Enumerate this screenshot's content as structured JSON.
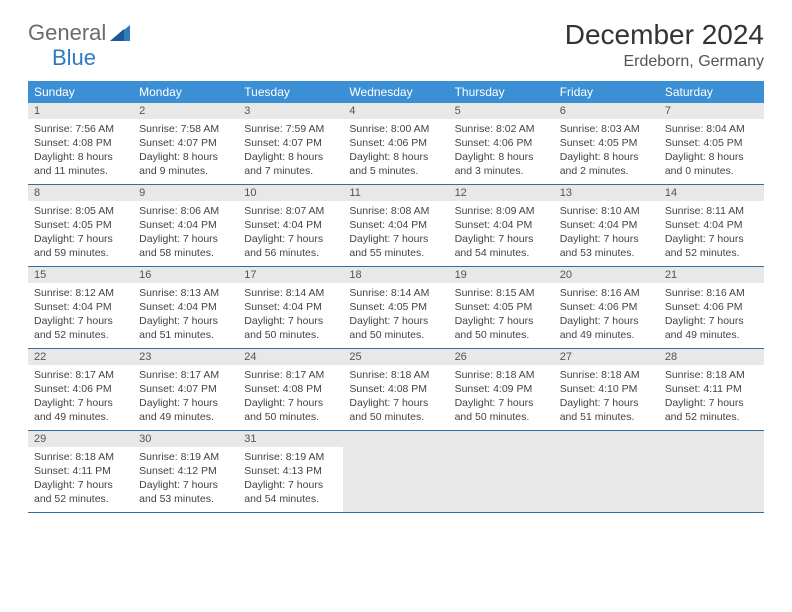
{
  "logo": {
    "text1": "General",
    "text2": "Blue"
  },
  "title": "December 2024",
  "location": "Erdeborn, Germany",
  "colors": {
    "header_bg": "#3b8fd4",
    "header_text": "#ffffff",
    "daynum_bg": "#e8e8e8",
    "row_divider": "#2f6fa8",
    "body_text": "#444444",
    "title_text": "#333333",
    "logo_gray": "#6b6b6b",
    "logo_blue": "#2f7bbf"
  },
  "weekdays": [
    "Sunday",
    "Monday",
    "Tuesday",
    "Wednesday",
    "Thursday",
    "Friday",
    "Saturday"
  ],
  "days": [
    {
      "n": "1",
      "sunrise": "7:56 AM",
      "sunset": "4:08 PM",
      "dh": "8",
      "dm": "11"
    },
    {
      "n": "2",
      "sunrise": "7:58 AM",
      "sunset": "4:07 PM",
      "dh": "8",
      "dm": "9"
    },
    {
      "n": "3",
      "sunrise": "7:59 AM",
      "sunset": "4:07 PM",
      "dh": "8",
      "dm": "7"
    },
    {
      "n": "4",
      "sunrise": "8:00 AM",
      "sunset": "4:06 PM",
      "dh": "8",
      "dm": "5"
    },
    {
      "n": "5",
      "sunrise": "8:02 AM",
      "sunset": "4:06 PM",
      "dh": "8",
      "dm": "3"
    },
    {
      "n": "6",
      "sunrise": "8:03 AM",
      "sunset": "4:05 PM",
      "dh": "8",
      "dm": "2"
    },
    {
      "n": "7",
      "sunrise": "8:04 AM",
      "sunset": "4:05 PM",
      "dh": "8",
      "dm": "0"
    },
    {
      "n": "8",
      "sunrise": "8:05 AM",
      "sunset": "4:05 PM",
      "dh": "7",
      "dm": "59"
    },
    {
      "n": "9",
      "sunrise": "8:06 AM",
      "sunset": "4:04 PM",
      "dh": "7",
      "dm": "58"
    },
    {
      "n": "10",
      "sunrise": "8:07 AM",
      "sunset": "4:04 PM",
      "dh": "7",
      "dm": "56"
    },
    {
      "n": "11",
      "sunrise": "8:08 AM",
      "sunset": "4:04 PM",
      "dh": "7",
      "dm": "55"
    },
    {
      "n": "12",
      "sunrise": "8:09 AM",
      "sunset": "4:04 PM",
      "dh": "7",
      "dm": "54"
    },
    {
      "n": "13",
      "sunrise": "8:10 AM",
      "sunset": "4:04 PM",
      "dh": "7",
      "dm": "53"
    },
    {
      "n": "14",
      "sunrise": "8:11 AM",
      "sunset": "4:04 PM",
      "dh": "7",
      "dm": "52"
    },
    {
      "n": "15",
      "sunrise": "8:12 AM",
      "sunset": "4:04 PM",
      "dh": "7",
      "dm": "52"
    },
    {
      "n": "16",
      "sunrise": "8:13 AM",
      "sunset": "4:04 PM",
      "dh": "7",
      "dm": "51"
    },
    {
      "n": "17",
      "sunrise": "8:14 AM",
      "sunset": "4:04 PM",
      "dh": "7",
      "dm": "50"
    },
    {
      "n": "18",
      "sunrise": "8:14 AM",
      "sunset": "4:05 PM",
      "dh": "7",
      "dm": "50"
    },
    {
      "n": "19",
      "sunrise": "8:15 AM",
      "sunset": "4:05 PM",
      "dh": "7",
      "dm": "50"
    },
    {
      "n": "20",
      "sunrise": "8:16 AM",
      "sunset": "4:06 PM",
      "dh": "7",
      "dm": "49"
    },
    {
      "n": "21",
      "sunrise": "8:16 AM",
      "sunset": "4:06 PM",
      "dh": "7",
      "dm": "49"
    },
    {
      "n": "22",
      "sunrise": "8:17 AM",
      "sunset": "4:06 PM",
      "dh": "7",
      "dm": "49"
    },
    {
      "n": "23",
      "sunrise": "8:17 AM",
      "sunset": "4:07 PM",
      "dh": "7",
      "dm": "49"
    },
    {
      "n": "24",
      "sunrise": "8:17 AM",
      "sunset": "4:08 PM",
      "dh": "7",
      "dm": "50"
    },
    {
      "n": "25",
      "sunrise": "8:18 AM",
      "sunset": "4:08 PM",
      "dh": "7",
      "dm": "50"
    },
    {
      "n": "26",
      "sunrise": "8:18 AM",
      "sunset": "4:09 PM",
      "dh": "7",
      "dm": "50"
    },
    {
      "n": "27",
      "sunrise": "8:18 AM",
      "sunset": "4:10 PM",
      "dh": "7",
      "dm": "51"
    },
    {
      "n": "28",
      "sunrise": "8:18 AM",
      "sunset": "4:11 PM",
      "dh": "7",
      "dm": "52"
    },
    {
      "n": "29",
      "sunrise": "8:18 AM",
      "sunset": "4:11 PM",
      "dh": "7",
      "dm": "52"
    },
    {
      "n": "30",
      "sunrise": "8:19 AM",
      "sunset": "4:12 PM",
      "dh": "7",
      "dm": "53"
    },
    {
      "n": "31",
      "sunrise": "8:19 AM",
      "sunset": "4:13 PM",
      "dh": "7",
      "dm": "54"
    }
  ],
  "trailing_empty": 4,
  "labels": {
    "sunrise_prefix": "Sunrise: ",
    "sunset_prefix": "Sunset: ",
    "daylight_prefix": "Daylight: ",
    "hours_word": " hours",
    "and_word": "and ",
    "minutes_word": " minutes."
  }
}
